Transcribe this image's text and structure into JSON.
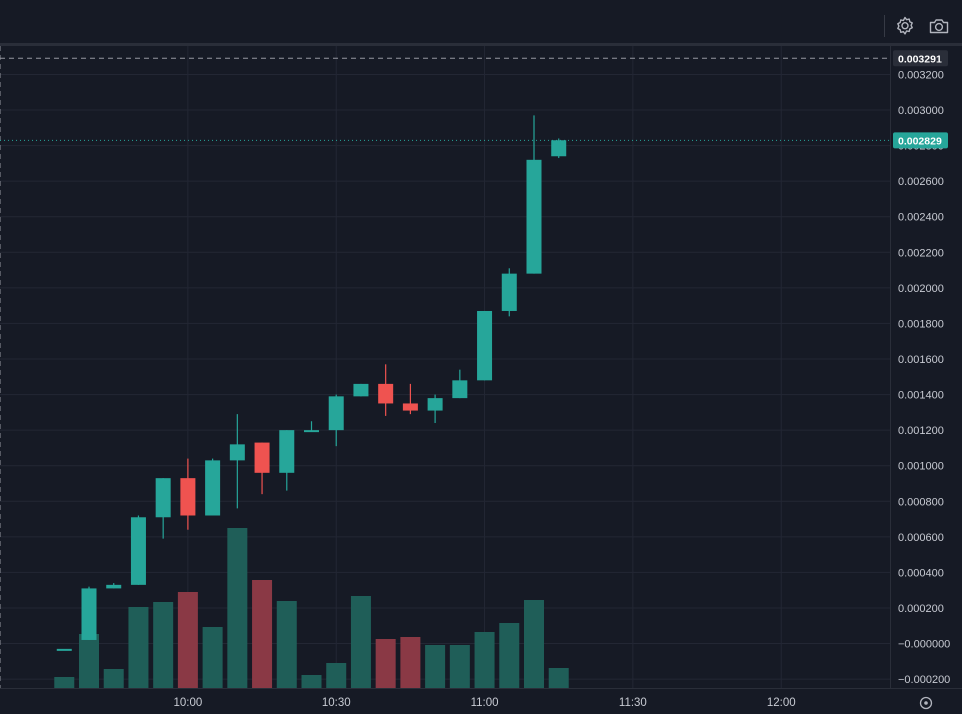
{
  "toolbar": {
    "settings_icon": "gear-icon",
    "camera_icon": "camera-icon",
    "axis_settings_icon": "gear-small-icon"
  },
  "colors": {
    "background": "#161a25",
    "grid": "#232734",
    "up": "#26a69a",
    "down": "#ef5350",
    "volume_up": "#1f5e58",
    "volume_down": "#8a3945",
    "crosshair": "#9598a1",
    "last_price_tag": "#26a69a",
    "crosshair_tag": "#2a2e39"
  },
  "price_axis": {
    "crosshair_price": "0.003291",
    "last_price": "0.002829",
    "ticks": [
      {
        "v": 0.0032,
        "label": "0.003200"
      },
      {
        "v": 0.003,
        "label": "0.003000"
      },
      {
        "v": 0.0028,
        "label": "0.002800"
      },
      {
        "v": 0.0026,
        "label": "0.002600"
      },
      {
        "v": 0.0024,
        "label": "0.002400"
      },
      {
        "v": 0.0022,
        "label": "0.002200"
      },
      {
        "v": 0.002,
        "label": "0.002000"
      },
      {
        "v": 0.0018,
        "label": "0.001800"
      },
      {
        "v": 0.0016,
        "label": "0.001600"
      },
      {
        "v": 0.0014,
        "label": "0.001400"
      },
      {
        "v": 0.0012,
        "label": "0.001200"
      },
      {
        "v": 0.001,
        "label": "0.001000"
      },
      {
        "v": 0.0008,
        "label": "0.000800"
      },
      {
        "v": 0.0006,
        "label": "0.000600"
      },
      {
        "v": 0.0004,
        "label": "0.000400"
      },
      {
        "v": 0.0002,
        "label": "0.000200"
      },
      {
        "v": 0.0,
        "label": "−0.000000"
      },
      {
        "v": -0.0002,
        "label": "−0.000200"
      }
    ]
  },
  "chart_data": {
    "type": "candlestick",
    "interval_minutes": 5,
    "ylim": [
      -0.00025,
      0.00336
    ],
    "xlim": [
      "09:22",
      "12:22"
    ],
    "grid": true,
    "x_ticks": [
      "10:00",
      "10:30",
      "11:00",
      "11:30",
      "12:00"
    ],
    "candles": [
      {
        "t": "09:35",
        "o": -3e-05,
        "h": -3e-05,
        "l": -3e-05,
        "c": -3e-05
      },
      {
        "t": "09:40",
        "o": 2e-05,
        "h": 0.00032,
        "l": 2e-05,
        "c": 0.00031
      },
      {
        "t": "09:45",
        "o": 0.00031,
        "h": 0.00034,
        "l": 0.00031,
        "c": 0.00033
      },
      {
        "t": "09:50",
        "o": 0.00033,
        "h": 0.00072,
        "l": 0.00033,
        "c": 0.00071
      },
      {
        "t": "09:55",
        "o": 0.00071,
        "h": 0.00093,
        "l": 0.00059,
        "c": 0.00093
      },
      {
        "t": "10:00",
        "o": 0.00093,
        "h": 0.00104,
        "l": 0.00064,
        "c": 0.00072
      },
      {
        "t": "10:05",
        "o": 0.00072,
        "h": 0.00104,
        "l": 0.00072,
        "c": 0.00103
      },
      {
        "t": "10:10",
        "o": 0.00103,
        "h": 0.00129,
        "l": 0.00076,
        "c": 0.00112
      },
      {
        "t": "10:15",
        "o": 0.00113,
        "h": 0.00113,
        "l": 0.00084,
        "c": 0.00096
      },
      {
        "t": "10:20",
        "o": 0.00096,
        "h": 0.0012,
        "l": 0.00086,
        "c": 0.0012
      },
      {
        "t": "10:25",
        "o": 0.0012,
        "h": 0.00125,
        "l": 0.00119,
        "c": 0.0012
      },
      {
        "t": "10:30",
        "o": 0.0012,
        "h": 0.0014,
        "l": 0.00111,
        "c": 0.00139
      },
      {
        "t": "10:35",
        "o": 0.00139,
        "h": 0.00146,
        "l": 0.00139,
        "c": 0.00146
      },
      {
        "t": "10:40",
        "o": 0.00146,
        "h": 0.00157,
        "l": 0.00128,
        "c": 0.00135
      },
      {
        "t": "10:45",
        "o": 0.00135,
        "h": 0.00146,
        "l": 0.00129,
        "c": 0.00131
      },
      {
        "t": "10:50",
        "o": 0.00131,
        "h": 0.0014,
        "l": 0.00124,
        "c": 0.00138
      },
      {
        "t": "10:55",
        "o": 0.00138,
        "h": 0.00154,
        "l": 0.00138,
        "c": 0.00148
      },
      {
        "t": "11:00",
        "o": 0.00148,
        "h": 0.00187,
        "l": 0.00148,
        "c": 0.00187
      },
      {
        "t": "11:05",
        "o": 0.00187,
        "h": 0.00211,
        "l": 0.00184,
        "c": 0.00208
      },
      {
        "t": "11:10",
        "o": 0.00208,
        "h": 0.00297,
        "l": 0.00208,
        "c": 0.00272
      },
      {
        "t": "11:15",
        "o": 0.00274,
        "h": 0.00284,
        "l": 0.00273,
        "c": 0.00283
      }
    ],
    "volume": [
      {
        "t": "09:35",
        "v": 1.1,
        "dir": "up"
      },
      {
        "t": "09:40",
        "v": 5.4,
        "dir": "up"
      },
      {
        "t": "09:45",
        "v": 1.9,
        "dir": "up"
      },
      {
        "t": "09:50",
        "v": 8.1,
        "dir": "up"
      },
      {
        "t": "09:55",
        "v": 8.6,
        "dir": "up"
      },
      {
        "t": "10:00",
        "v": 9.6,
        "dir": "down"
      },
      {
        "t": "10:05",
        "v": 6.1,
        "dir": "up"
      },
      {
        "t": "10:10",
        "v": 16.0,
        "dir": "up"
      },
      {
        "t": "10:15",
        "v": 10.8,
        "dir": "down"
      },
      {
        "t": "10:20",
        "v": 8.7,
        "dir": "up"
      },
      {
        "t": "10:25",
        "v": 1.3,
        "dir": "up"
      },
      {
        "t": "10:30",
        "v": 2.5,
        "dir": "up"
      },
      {
        "t": "10:35",
        "v": 9.2,
        "dir": "up"
      },
      {
        "t": "10:40",
        "v": 4.9,
        "dir": "down"
      },
      {
        "t": "10:45",
        "v": 5.1,
        "dir": "down"
      },
      {
        "t": "10:50",
        "v": 4.3,
        "dir": "up"
      },
      {
        "t": "10:55",
        "v": 4.3,
        "dir": "up"
      },
      {
        "t": "11:00",
        "v": 5.6,
        "dir": "up"
      },
      {
        "t": "11:05",
        "v": 6.5,
        "dir": "up"
      },
      {
        "t": "11:10",
        "v": 8.8,
        "dir": "up"
      },
      {
        "t": "11:15",
        "v": 2.0,
        "dir": "up"
      }
    ],
    "crosshair": {
      "t": "09:22",
      "price": 0.003291
    }
  }
}
